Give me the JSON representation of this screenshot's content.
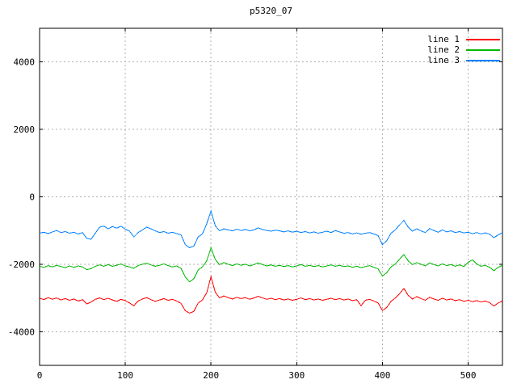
{
  "chart_data": {
    "type": "line",
    "title": "p5320_07",
    "xlabel": "",
    "ylabel": "",
    "xlim": [
      0,
      540
    ],
    "ylim": [
      -5000,
      5000
    ],
    "xticks": [
      0,
      100,
      200,
      300,
      400,
      500
    ],
    "yticks": [
      -4000,
      -2000,
      0,
      2000,
      4000
    ],
    "grid": true,
    "grid_color": "#b0b0b0",
    "axis_color": "#000000",
    "background_color": "#ffffff",
    "legend_position": "top-right",
    "x0": 0,
    "dx": 5,
    "series": [
      {
        "name": "line 1",
        "color": "#ff0000",
        "ys": [
          -3010,
          -3050,
          -2990,
          -3040,
          -3000,
          -3060,
          -3020,
          -3070,
          -3030,
          -3090,
          -3050,
          -3180,
          -3120,
          -3040,
          -3000,
          -3050,
          -3010,
          -3060,
          -3100,
          -3040,
          -3080,
          -3150,
          -3230,
          -3090,
          -3030,
          -2990,
          -3050,
          -3100,
          -3060,
          -3020,
          -3070,
          -3040,
          -3090,
          -3160,
          -3380,
          -3450,
          -3400,
          -3150,
          -3060,
          -2850,
          -2370,
          -2830,
          -3000,
          -2940,
          -2990,
          -3030,
          -2980,
          -3020,
          -2990,
          -3040,
          -3000,
          -2950,
          -3000,
          -3040,
          -3010,
          -3050,
          -3020,
          -3060,
          -3030,
          -3070,
          -3040,
          -3000,
          -3050,
          -3020,
          -3060,
          -3030,
          -3070,
          -3040,
          -3010,
          -3050,
          -3020,
          -3060,
          -3030,
          -3080,
          -3050,
          -3230,
          -3070,
          -3040,
          -3090,
          -3150,
          -3370,
          -3280,
          -3100,
          -3000,
          -2870,
          -2720,
          -2920,
          -3030,
          -2960,
          -3020,
          -3070,
          -2980,
          -3030,
          -3070,
          -3010,
          -3060,
          -3030,
          -3080,
          -3050,
          -3100,
          -3070,
          -3110,
          -3080,
          -3120,
          -3090,
          -3140,
          -3240,
          -3150,
          -3090
        ]
      },
      {
        "name": "line 2",
        "color": "#00b800",
        "ys": [
          -2060,
          -2090,
          -2040,
          -2080,
          -2030,
          -2070,
          -2100,
          -2050,
          -2090,
          -2050,
          -2080,
          -2160,
          -2130,
          -2060,
          -2020,
          -2060,
          -2010,
          -2060,
          -2030,
          -1990,
          -2050,
          -2080,
          -2120,
          -2040,
          -2000,
          -1970,
          -2020,
          -2060,
          -2030,
          -1990,
          -2040,
          -2080,
          -2050,
          -2120,
          -2380,
          -2520,
          -2430,
          -2170,
          -2080,
          -1900,
          -1510,
          -1860,
          -2010,
          -1950,
          -2000,
          -2040,
          -1990,
          -2030,
          -2000,
          -2050,
          -2010,
          -1960,
          -2010,
          -2050,
          -2020,
          -2060,
          -2030,
          -2070,
          -2040,
          -2080,
          -2050,
          -2010,
          -2060,
          -2030,
          -2070,
          -2040,
          -2080,
          -2050,
          -2020,
          -2060,
          -2030,
          -2070,
          -2050,
          -2090,
          -2060,
          -2100,
          -2070,
          -2040,
          -2090,
          -2140,
          -2350,
          -2250,
          -2080,
          -1990,
          -1850,
          -1710,
          -1900,
          -2010,
          -1950,
          -2000,
          -2050,
          -1960,
          -2010,
          -2050,
          -1990,
          -2040,
          -2010,
          -2060,
          -2020,
          -2070,
          -1940,
          -1870,
          -1990,
          -2060,
          -2030,
          -2090,
          -2190,
          -2090,
          -2030
        ]
      },
      {
        "name": "line 3",
        "color": "#0080ff",
        "ys": [
          -1080,
          -1050,
          -1090,
          -1040,
          -1000,
          -1060,
          -1030,
          -1080,
          -1050,
          -1100,
          -1060,
          -1230,
          -1260,
          -1080,
          -900,
          -870,
          -950,
          -880,
          -930,
          -870,
          -960,
          -1020,
          -1190,
          -1060,
          -980,
          -900,
          -950,
          -1010,
          -1060,
          -1030,
          -1080,
          -1050,
          -1090,
          -1130,
          -1420,
          -1510,
          -1460,
          -1190,
          -1100,
          -800,
          -420,
          -860,
          -1010,
          -950,
          -980,
          -1010,
          -960,
          -1000,
          -970,
          -1010,
          -980,
          -920,
          -970,
          -1000,
          -1020,
          -990,
          -1010,
          -1040,
          -1010,
          -1050,
          -1020,
          -1060,
          -1030,
          -1070,
          -1040,
          -1080,
          -1050,
          -1020,
          -1060,
          -1000,
          -1040,
          -1080,
          -1060,
          -1100,
          -1070,
          -1110,
          -1080,
          -1060,
          -1100,
          -1150,
          -1420,
          -1300,
          -1080,
          -980,
          -830,
          -700,
          -900,
          -1020,
          -950,
          -1010,
          -1060,
          -940,
          -1000,
          -1050,
          -980,
          -1040,
          -1010,
          -1060,
          -1030,
          -1070,
          -1050,
          -1090,
          -1060,
          -1100,
          -1070,
          -1110,
          -1210,
          -1130,
          -1060
        ]
      }
    ]
  }
}
